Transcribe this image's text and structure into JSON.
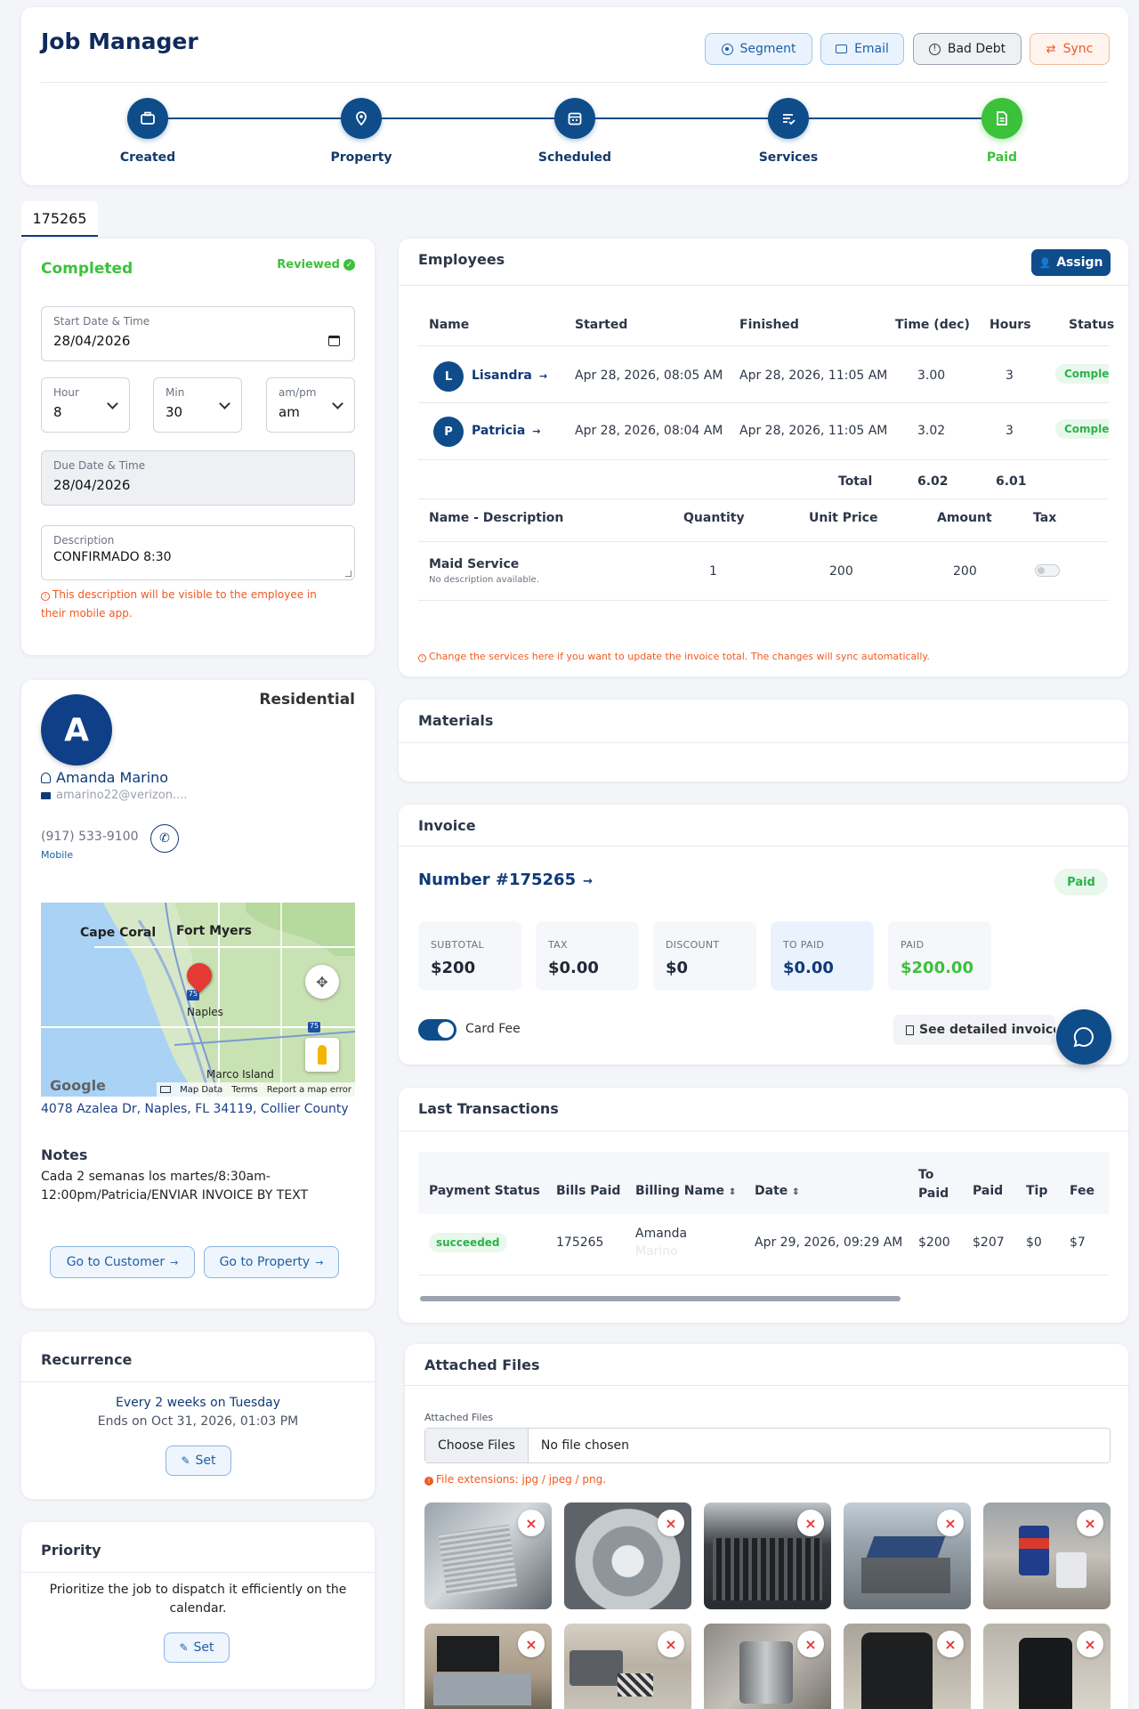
{
  "header": {
    "title": "Job Manager",
    "buttons": {
      "segment": "Segment",
      "email": "Email",
      "bad_debt": "Bad Debt",
      "sync": "Sync"
    },
    "steps": [
      "Created",
      "Property",
      "Scheduled",
      "Services",
      "Paid"
    ]
  },
  "tab": {
    "label": "175265"
  },
  "job": {
    "status": "Completed",
    "reviewed": "Reviewed",
    "start_label": "Start Date & Time",
    "start_value": "28/04/2026",
    "hour_label": "Hour",
    "hour_value": "8",
    "min_label": "Min",
    "min_value": "30",
    "ampm_label": "am/pm",
    "ampm_value": "am",
    "due_label": "Due Date & Time",
    "due_value": "28/04/2026",
    "desc_label": "Description",
    "desc_value": "CONFIRMADO 8:30",
    "desc_warning": "This description will be visible to the employee in their mobile app."
  },
  "customer": {
    "type": "Residential",
    "initial": "A",
    "name": "Amanda Marino",
    "email": "amarino22@verizon....",
    "phone": "(917) 533-9100",
    "phone_type": "Mobile",
    "address": "4078 Azalea Dr, Naples, FL 34119, Collier County",
    "map": {
      "cities": [
        "Cape Coral",
        "Fort Myers",
        "Naples",
        "Marco Island"
      ],
      "highways": [
        "75",
        "75"
      ],
      "brand": "Google",
      "footer": [
        "Map Data",
        "Terms",
        "Report a map error"
      ]
    },
    "notes_title": "Notes",
    "notes": "Cada 2 semanas los martes/8:30am-12:00pm/Patricia/ENVIAR INVOICE BY TEXT",
    "go_customer": "Go to Customer",
    "go_property": "Go to Property"
  },
  "recurrence": {
    "title": "Recurrence",
    "line1": "Every 2 weeks on Tuesday",
    "line2": "Ends on Oct 31, 2026, 01:03 PM",
    "set": "Set"
  },
  "priority": {
    "title": "Priority",
    "text": "Prioritize the job to dispatch it efficiently on the calendar.",
    "set": "Set"
  },
  "employees": {
    "title": "Employees",
    "assign": "Assign",
    "headers": [
      "Name",
      "Started",
      "Finished",
      "Time (dec)",
      "Hours",
      "Status"
    ],
    "rows": [
      {
        "initial": "L",
        "name": "Lisandra",
        "started": "Apr 28, 2026, 08:05 AM",
        "finished": "Apr 28, 2026, 11:05 AM",
        "dec": "3.00",
        "hours": "3",
        "status": "Complete"
      },
      {
        "initial": "P",
        "name": "Patricia",
        "started": "Apr 28, 2026, 08:04 AM",
        "finished": "Apr 28, 2026, 11:05 AM",
        "dec": "3.02",
        "hours": "3",
        "status": "Complete"
      }
    ],
    "total_label": "Total",
    "total_dec": "6.02",
    "total_hours": "6.01",
    "svc_headers": [
      "Name - Description",
      "Quantity",
      "Unit Price",
      "Amount",
      "Tax"
    ],
    "service": {
      "name": "Maid Service",
      "desc": "No description available.",
      "qty": "1",
      "price": "200",
      "amount": "200",
      "tax_on": false
    },
    "warning": "Change the services here if you want to update the invoice total. The changes will sync automatically."
  },
  "materials": {
    "title": "Materials"
  },
  "invoice": {
    "title": "Invoice",
    "number": "Number #175265",
    "status": "Paid",
    "tiles": [
      {
        "label": "SUBTOTAL",
        "value": "$200"
      },
      {
        "label": "TAX",
        "value": "$0.00"
      },
      {
        "label": "DISCOUNT",
        "value": "$0"
      },
      {
        "label": "TO PAID",
        "value": "$0.00"
      },
      {
        "label": "PAID",
        "value": "$200.00"
      }
    ],
    "card_fee": "Card Fee",
    "card_fee_on": true,
    "detailed": "See detailed invoice r"
  },
  "transactions": {
    "title": "Last Transactions",
    "headers": [
      "Payment Status",
      "Bills Paid",
      "Billing Name",
      "Date",
      "To Paid",
      "Paid",
      "Tip",
      "Fee"
    ],
    "row": {
      "status": "succeeded",
      "bills": "175265",
      "name": "Amanda",
      "name2": "Marino",
      "date": "Apr 29, 2026, 09:29 AM",
      "to_paid": "$200",
      "paid": "$207",
      "tip": "$0",
      "fee": "$7"
    }
  },
  "files": {
    "title": "Attached Files",
    "label": "Attached Files",
    "choose": "Choose Files",
    "none": "No file chosen",
    "ext": "File extensions: jpg / jpeg / png."
  },
  "colors": {
    "accent": "#0f4c8a",
    "success": "#3cc13b",
    "warning": "#f05a22",
    "paid_tile": "#eaf3fd"
  }
}
